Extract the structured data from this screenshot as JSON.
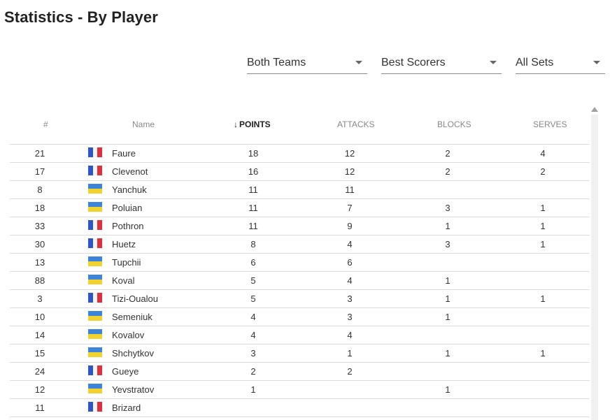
{
  "page": {
    "title": "Statistics - By Player"
  },
  "filters": {
    "team": "Both Teams",
    "category": "Best Scorers",
    "sets": "All Sets"
  },
  "table": {
    "headers": {
      "num": "#",
      "name": "Name",
      "sort_arrow": "↓",
      "points": "POINTS",
      "attacks": "ATTACKS",
      "blocks": "BLOCKS",
      "serves": "SERVES"
    },
    "rows": [
      {
        "num": "21",
        "flag": "france-flag",
        "name": "Faure",
        "points": "18",
        "attacks": "12",
        "blocks": "2",
        "serves": "4"
      },
      {
        "num": "17",
        "flag": "france-flag",
        "name": "Clevenot",
        "points": "16",
        "attacks": "12",
        "blocks": "2",
        "serves": "2"
      },
      {
        "num": "8",
        "flag": "ukraine-flag",
        "name": "Yanchuk",
        "points": "11",
        "attacks": "11",
        "blocks": "",
        "serves": ""
      },
      {
        "num": "18",
        "flag": "ukraine-flag",
        "name": "Poluian",
        "points": "11",
        "attacks": "7",
        "blocks": "3",
        "serves": "1"
      },
      {
        "num": "33",
        "flag": "france-flag",
        "name": "Pothron",
        "points": "11",
        "attacks": "9",
        "blocks": "1",
        "serves": "1"
      },
      {
        "num": "30",
        "flag": "france-flag",
        "name": "Huetz",
        "points": "8",
        "attacks": "4",
        "blocks": "3",
        "serves": "1"
      },
      {
        "num": "13",
        "flag": "ukraine-flag",
        "name": "Tupchii",
        "points": "6",
        "attacks": "6",
        "blocks": "",
        "serves": ""
      },
      {
        "num": "88",
        "flag": "ukraine-flag",
        "name": "Koval",
        "points": "5",
        "attacks": "4",
        "blocks": "1",
        "serves": ""
      },
      {
        "num": "3",
        "flag": "france-flag",
        "name": "Tizi-Oualou",
        "points": "5",
        "attacks": "3",
        "blocks": "1",
        "serves": "1"
      },
      {
        "num": "10",
        "flag": "ukraine-flag",
        "name": "Semeniuk",
        "points": "4",
        "attacks": "3",
        "blocks": "1",
        "serves": ""
      },
      {
        "num": "14",
        "flag": "ukraine-flag",
        "name": "Kovalov",
        "points": "4",
        "attacks": "4",
        "blocks": "",
        "serves": ""
      },
      {
        "num": "15",
        "flag": "ukraine-flag",
        "name": "Shchytkov",
        "points": "3",
        "attacks": "1",
        "blocks": "1",
        "serves": "1"
      },
      {
        "num": "24",
        "flag": "france-flag",
        "name": "Gueye",
        "points": "2",
        "attacks": "2",
        "blocks": "",
        "serves": ""
      },
      {
        "num": "12",
        "flag": "ukraine-flag",
        "name": "Yevstratov",
        "points": "1",
        "attacks": "",
        "blocks": "1",
        "serves": ""
      },
      {
        "num": "11",
        "flag": "france-flag",
        "name": "Brizard",
        "points": "",
        "attacks": "",
        "blocks": "",
        "serves": ""
      }
    ]
  },
  "icons": {
    "select_caret": "caret-down-icon",
    "scroll_up": "scroll-up-icon"
  },
  "colors": {
    "france_blue": "#2f56c6",
    "france_red": "#e0303c",
    "ukraine_blue": "#3d85d8",
    "ukraine_yellow": "#f2d22e"
  }
}
